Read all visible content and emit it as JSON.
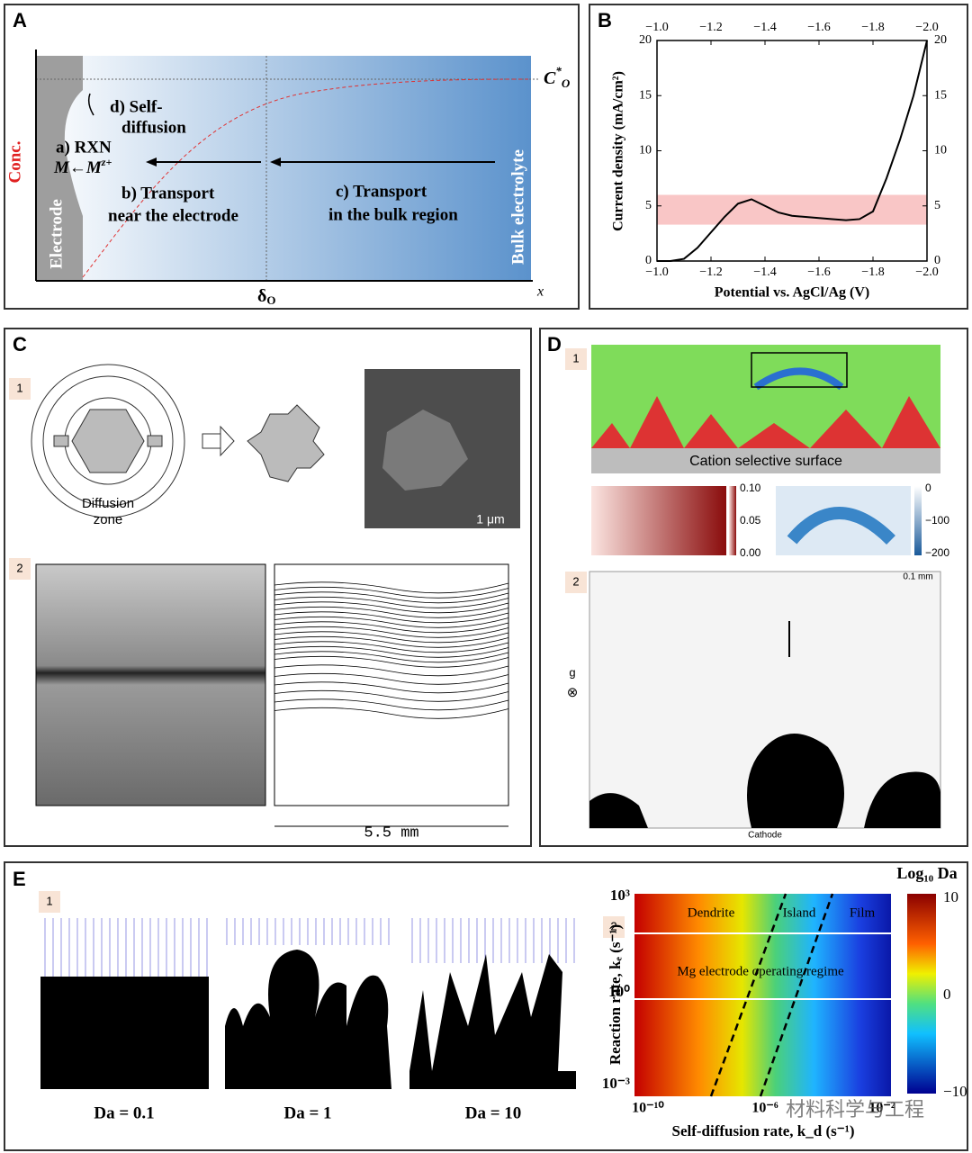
{
  "panel_a": {
    "label": "A",
    "c_symbol": "C",
    "c_sup": "*",
    "c_sub": "O",
    "step_d_1": "d) Self-",
    "step_d_2": "diffusion",
    "step_a": "a) RXN",
    "reaction": "M←M",
    "reaction_sup": "z+",
    "step_b_1": "b) Transport",
    "step_b_2": "near the electrode",
    "step_c_1": "c) Transport",
    "step_c_2": "in the bulk region",
    "bulk": "Bulk electrolyte",
    "electrode": "Electrode",
    "y_label": "Conc.",
    "delta": "δ",
    "delta_sub": "O",
    "x_label": "x"
  },
  "chart_data": {
    "type": "line",
    "panel_label": "B",
    "x_label": "Potential vs. AgCl/Ag (V)",
    "y_label": "Current density (mA/cm²)",
    "x": [
      -1.0,
      -1.05,
      -1.1,
      -1.15,
      -1.2,
      -1.25,
      -1.3,
      -1.35,
      -1.4,
      -1.45,
      -1.5,
      -1.55,
      -1.6,
      -1.65,
      -1.7,
      -1.75,
      -1.8,
      -1.85,
      -1.9,
      -1.95,
      -2.0
    ],
    "series": [
      {
        "color": "#000000",
        "values": [
          0,
          0,
          0.2,
          1.2,
          2.6,
          4.0,
          5.2,
          5.6,
          5.0,
          4.4,
          4.1,
          4.0,
          3.9,
          3.8,
          3.7,
          3.8,
          4.5,
          7.5,
          11,
          15,
          20
        ]
      }
    ],
    "highlight": [
      3.3,
      6.0
    ],
    "highlight_color": "#f7b8b8",
    "xlim": [
      -1.0,
      -2.0
    ],
    "xticks": [
      {
        "value": -1.0,
        "label": "−1.0"
      },
      {
        "value": -1.2,
        "label": "−1.2"
      },
      {
        "value": -1.4,
        "label": "−1.4"
      },
      {
        "value": -1.6,
        "label": "−1.6"
      },
      {
        "value": -1.8,
        "label": "−1.8"
      },
      {
        "value": -2.0,
        "label": "−2.0"
      }
    ],
    "ylim": [
      0,
      20
    ],
    "yticks": [
      0,
      5,
      10,
      15,
      20
    ]
  },
  "panel_c": {
    "label": "C",
    "sub1": "1",
    "diffusion_1": "Diffusion",
    "diffusion_2": "zone",
    "scale_sem": "1 μm",
    "sub2": "2",
    "scale_2": "5.5 mm"
  },
  "panel_d": {
    "label": "D",
    "sub1": "1",
    "surface": "Cation selective surface",
    "bar_left": [
      "0.10",
      "0.05",
      "0.00"
    ],
    "bar_right": [
      "0",
      "−100",
      "−200"
    ],
    "sub2": "2",
    "scale": "0.1 mm",
    "gravity": "g",
    "gravity_symbol": "⊗",
    "cathode": "Cathode"
  },
  "panel_e": {
    "label": "E",
    "sub1": "1",
    "cases": [
      "Da = 0.1",
      "Da = 1",
      "Da = 10"
    ],
    "sub2": "2",
    "regions": [
      "Dendrite",
      "Island",
      "Film"
    ],
    "regime": "Mg electrode operating regime",
    "colorbar_title": "Log₁₀ Da",
    "colorbar_ticks": [
      "10",
      "0",
      "−10"
    ],
    "y_ticks": [
      "10³",
      "10⁰",
      "10⁻³"
    ],
    "x_ticks": [
      "10⁻¹⁰",
      "10⁻⁶",
      "10⁻²"
    ],
    "y_label": "Reaction rate, kₑ (s⁻¹)",
    "x_label": "Self-diffusion rate, k_d (s⁻¹)",
    "watermark": "材料科学与工程"
  }
}
